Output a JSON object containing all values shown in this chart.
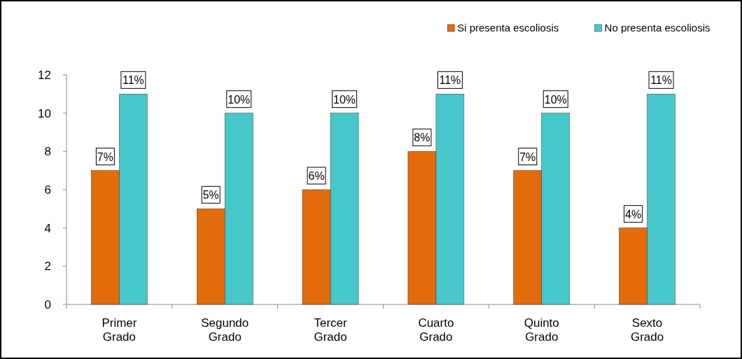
{
  "chart_data": {
    "type": "bar",
    "categories": [
      "Primer Grado",
      "Segundo Grado",
      "Tercer Grado",
      "Cuarto Grado",
      "Quinto Grado",
      "Sexto Grado"
    ],
    "series": [
      {
        "name": "Si presenta escoliosis",
        "color": "#e36c0a",
        "values": [
          7,
          5,
          6,
          8,
          7,
          4
        ],
        "value_labels": [
          "7%",
          "5%",
          "6%",
          "8%",
          "7%",
          "4%"
        ]
      },
      {
        "name": "No presenta escoliosis",
        "color": "#46c8cb",
        "values": [
          11,
          10,
          10,
          11,
          10,
          11
        ],
        "value_labels": [
          "11%",
          "10%",
          "10%",
          "11%",
          "10%",
          "11%"
        ]
      }
    ],
    "ylim": [
      0,
      12
    ],
    "yticks": [
      0,
      2,
      4,
      6,
      8,
      10,
      12
    ],
    "legend": "top right"
  }
}
